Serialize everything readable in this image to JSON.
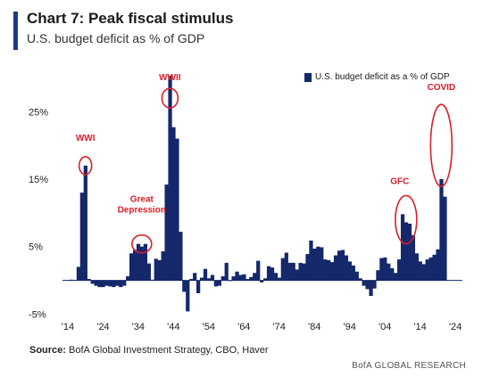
{
  "header": {
    "title": "Chart 7: Peak fiscal stimulus",
    "subtitle": "U.S. budget deficit as % of GDP"
  },
  "footer": {
    "source_label": "Source:",
    "source_text": "BofA Global Investment Strategy, CBO, Haver",
    "brand": "BofA GLOBAL RESEARCH"
  },
  "colors": {
    "accent": "#1a3a8a",
    "bar": "#15286b",
    "annotation": "#d9202a"
  },
  "chart_data": {
    "type": "bar",
    "legend": "U.S. budget deficit as a % of GDP",
    "legend_position": "top-right",
    "ylim": [
      -6,
      29
    ],
    "yticks": [
      -5,
      5,
      15,
      25
    ],
    "ytick_labels": [
      "-5%",
      "5%",
      "15%",
      "25%"
    ],
    "xticks": [
      1914,
      1924,
      1934,
      1944,
      1954,
      1964,
      1974,
      1984,
      1994,
      2004,
      2014,
      2024
    ],
    "xtick_labels": [
      "'14",
      "'24",
      "'34",
      "'44",
      "'54",
      "'64",
      "'74",
      "'84",
      "'94",
      "'04",
      "'14",
      "'24"
    ],
    "grid": false,
    "series": [
      {
        "name": "U.S. budget deficit as a % of GDP",
        "x": [
          1914,
          1915,
          1916,
          1917,
          1918,
          1919,
          1920,
          1921,
          1922,
          1923,
          1924,
          1925,
          1926,
          1927,
          1928,
          1929,
          1930,
          1931,
          1932,
          1933,
          1934,
          1935,
          1936,
          1937,
          1938,
          1939,
          1940,
          1941,
          1942,
          1943,
          1944,
          1945,
          1946,
          1947,
          1948,
          1949,
          1950,
          1951,
          1952,
          1953,
          1954,
          1955,
          1956,
          1957,
          1958,
          1959,
          1960,
          1961,
          1962,
          1963,
          1964,
          1965,
          1966,
          1967,
          1968,
          1969,
          1970,
          1971,
          1972,
          1973,
          1974,
          1975,
          1976,
          1977,
          1978,
          1979,
          1980,
          1981,
          1982,
          1983,
          1984,
          1985,
          1986,
          1987,
          1988,
          1989,
          1990,
          1991,
          1992,
          1993,
          1994,
          1995,
          1996,
          1997,
          1998,
          1999,
          2000,
          2001,
          2002,
          2003,
          2004,
          2005,
          2006,
          2007,
          2008,
          2009,
          2010,
          2011,
          2012,
          2013,
          2014,
          2015,
          2016,
          2017,
          2018,
          2019,
          2020,
          2021
        ],
        "values": [
          0.0,
          0.1,
          0.0,
          2.0,
          13.0,
          17.0,
          0.2,
          -0.5,
          -0.8,
          -1.0,
          -1.0,
          -0.8,
          -0.9,
          -1.0,
          -0.8,
          -1.0,
          -0.8,
          0.6,
          4.0,
          4.5,
          5.4,
          5.0,
          5.4,
          2.5,
          0.1,
          3.2,
          3.0,
          4.3,
          14.2,
          30.3,
          22.7,
          21.0,
          7.2,
          -1.7,
          -4.6,
          0.2,
          1.1,
          -1.9,
          0.4,
          1.7,
          0.3,
          0.8,
          -0.9,
          -0.8,
          0.6,
          2.6,
          -0.1,
          0.6,
          1.3,
          0.8,
          0.9,
          0.2,
          0.5,
          1.1,
          2.9,
          -0.3,
          0.3,
          2.1,
          1.9,
          1.1,
          0.4,
          3.3,
          4.1,
          2.6,
          2.6,
          1.6,
          2.6,
          2.5,
          3.9,
          5.9,
          4.7,
          5.0,
          4.9,
          3.1,
          3.0,
          2.7,
          3.7,
          4.4,
          4.5,
          3.7,
          2.8,
          2.2,
          1.3,
          0.3,
          -0.8,
          -1.3,
          -2.3,
          -1.2,
          1.5,
          3.3,
          3.4,
          2.5,
          1.8,
          1.1,
          3.1,
          9.8,
          8.6,
          8.4,
          6.7,
          4.0,
          2.8,
          2.4,
          3.1,
          3.4,
          3.8,
          4.6,
          15.0,
          12.4
        ]
      }
    ],
    "annotations": [
      {
        "label": "WWI",
        "year": 1919,
        "value": 17.0
      },
      {
        "label": "Great\nDepression",
        "year": 1935,
        "value": 5.4
      },
      {
        "label": "WWII",
        "year": 1943,
        "value": 27.0
      },
      {
        "label": "GFC",
        "year": 2010,
        "value": 9.0
      },
      {
        "label": "COVID",
        "year": 2020,
        "value": 20.0
      }
    ]
  }
}
